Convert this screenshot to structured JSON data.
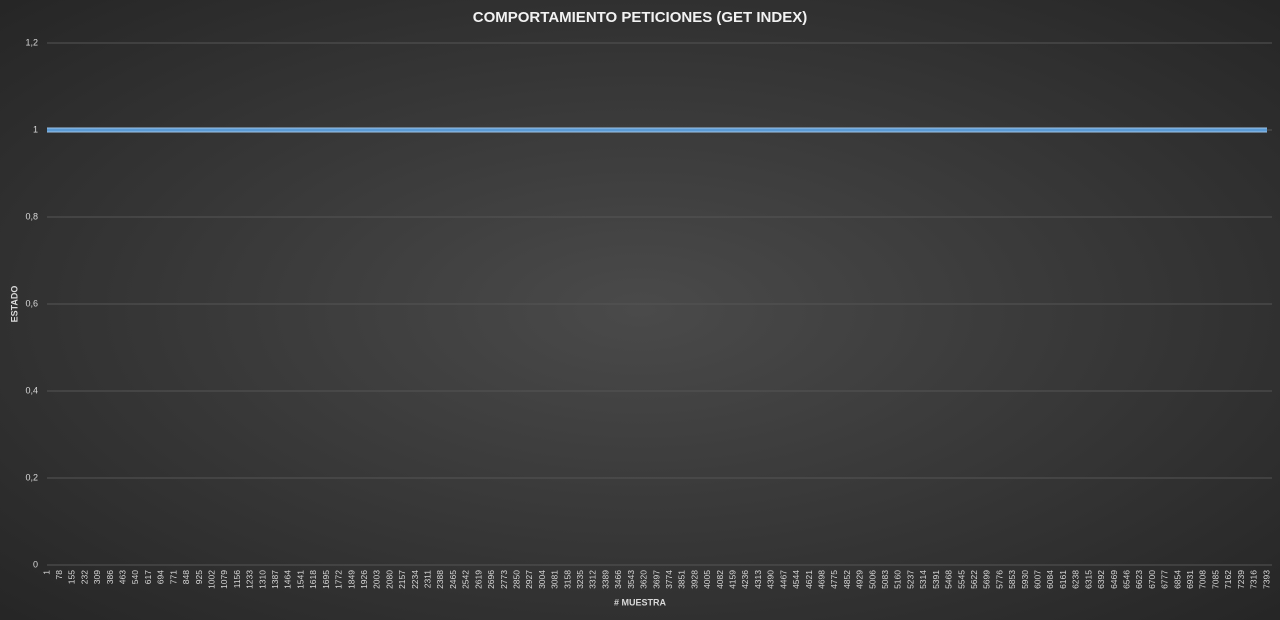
{
  "chart_data": {
    "type": "line",
    "title": "COMPORTAMIENTO PETICIONES (GET INDEX)",
    "x_label": "# MUESTRA",
    "y_label": "ESTADO",
    "categories": [
      1,
      78,
      155,
      232,
      309,
      386,
      463,
      540,
      617,
      694,
      771,
      848,
      925,
      1002,
      1079,
      1156,
      1233,
      1310,
      1387,
      1464,
      1541,
      1618,
      1695,
      1772,
      1849,
      1926,
      2003,
      2080,
      2157,
      2234,
      2311,
      2388,
      2465,
      2542,
      2619,
      2696,
      2773,
      2850,
      2927,
      3004,
      3081,
      3158,
      3235,
      3312,
      3389,
      3466,
      3543,
      3620,
      3697,
      3774,
      3851,
      3928,
      4005,
      4082,
      4159,
      4236,
      4313,
      4390,
      4467,
      4544,
      4621,
      4698,
      4775,
      4852,
      4929,
      5006,
      5083,
      5160,
      5237,
      5314,
      5391,
      5468,
      5545,
      5622,
      5699,
      5776,
      5853,
      5930,
      6007,
      6084,
      6161,
      6238,
      6315,
      6392,
      6469,
      6546,
      6623,
      6700,
      6777,
      6854,
      6931,
      7008,
      7085,
      7162,
      7239,
      7316,
      7393
    ],
    "values": [
      1,
      1,
      1,
      1,
      1,
      1,
      1,
      1,
      1,
      1,
      1,
      1,
      1,
      1,
      1,
      1,
      1,
      1,
      1,
      1,
      1,
      1,
      1,
      1,
      1,
      1,
      1,
      1,
      1,
      1,
      1,
      1,
      1,
      1,
      1,
      1,
      1,
      1,
      1,
      1,
      1,
      1,
      1,
      1,
      1,
      1,
      1,
      1,
      1,
      1,
      1,
      1,
      1,
      1,
      1,
      1,
      1,
      1,
      1,
      1,
      1,
      1,
      1,
      1,
      1,
      1,
      1,
      1,
      1,
      1,
      1,
      1,
      1,
      1,
      1,
      1,
      1,
      1,
      1,
      1,
      1,
      1,
      1,
      1,
      1,
      1,
      1,
      1,
      1,
      1,
      1,
      1,
      1,
      1,
      1,
      1,
      1
    ],
    "color": "#5b9bd5",
    "ylim": [
      0,
      1.2
    ],
    "yticks": [
      0,
      {
        "value": 0.2,
        "label": "0,2"
      },
      {
        "value": 0.4,
        "label": "0,4"
      },
      {
        "value": 0.6,
        "label": "0,6"
      },
      {
        "value": 0.8,
        "label": "0,8"
      },
      1,
      {
        "value": 1.2,
        "label": "1,2"
      }
    ],
    "grid": true
  }
}
